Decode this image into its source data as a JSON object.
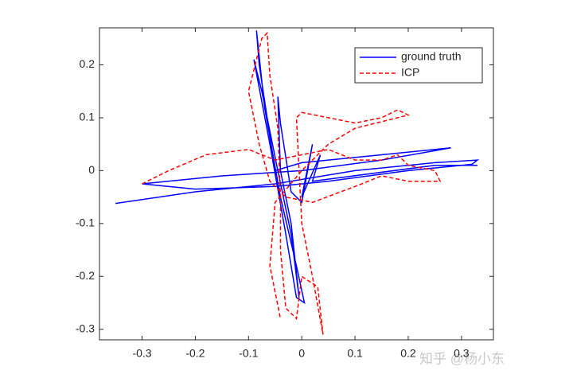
{
  "chart_data": {
    "type": "line",
    "xlim": [
      -0.38,
      0.36
    ],
    "ylim": [
      -0.32,
      0.27
    ],
    "xticks": [
      -0.3,
      -0.2,
      -0.1,
      0,
      0.1,
      0.2,
      0.3
    ],
    "yticks": [
      -0.3,
      -0.2,
      -0.1,
      0,
      0.1,
      0.2
    ],
    "legend": "northeast",
    "series": [
      {
        "name": "ground truth",
        "color": "#0000ff",
        "dash": "solid",
        "x": [
          -0.35,
          -0.2,
          -0.05,
          0.1,
          0.25,
          0.33,
          0.32,
          0.2,
          0.05,
          -0.05,
          -0.2,
          -0.3,
          -0.15,
          0.0,
          0.15,
          0.28,
          0.15,
          0.0,
          -0.05,
          -0.08,
          -0.085,
          -0.07,
          -0.04,
          -0.01,
          0.005,
          -0.01,
          -0.03,
          -0.06,
          -0.09,
          -0.075,
          -0.045,
          -0.02,
          -0.005,
          -0.02,
          -0.04,
          -0.045,
          -0.04,
          -0.02,
          0.0,
          0.02,
          0.0,
          0.035,
          0.02,
          0.25,
          0.33
        ],
        "values": [
          -0.062,
          -0.04,
          -0.025,
          0.0,
          0.015,
          0.02,
          0.012,
          0.0,
          -0.02,
          -0.03,
          -0.035,
          -0.025,
          -0.01,
          0.0,
          0.02,
          0.043,
          0.03,
          0.015,
          0.0,
          0.2,
          0.265,
          0.12,
          -0.05,
          -0.18,
          -0.25,
          -0.24,
          -0.12,
          0.05,
          0.21,
          0.15,
          0.0,
          -0.12,
          -0.24,
          -0.1,
          0.0,
          0.14,
          0.09,
          -0.04,
          -0.06,
          0.05,
          -0.05,
          0.03,
          -0.02,
          0.01,
          0.01
        ]
      },
      {
        "name": "ICP",
        "color": "#ff0000",
        "dash": "dashed",
        "x": [
          -0.3,
          -0.25,
          -0.18,
          -0.1,
          -0.05,
          0.0,
          0.05,
          0.1,
          0.15,
          0.18,
          0.2,
          0.25,
          0.26,
          0.2,
          0.15,
          0.1,
          0.02,
          -0.03,
          -0.06,
          -0.08,
          -0.1,
          -0.075,
          -0.065,
          -0.06,
          -0.045,
          -0.04,
          -0.04,
          -0.03,
          -0.01,
          0.0,
          0.03,
          0.04,
          0.02,
          0.0,
          -0.005,
          -0.01,
          0.0,
          0.05,
          0.1,
          0.15,
          0.18,
          0.2,
          0.18,
          0.1,
          0.05,
          0.0,
          -0.05,
          -0.06,
          -0.04
        ],
        "values": [
          -0.025,
          0.0,
          0.03,
          0.04,
          0.02,
          0.03,
          0.04,
          0.02,
          0.02,
          0.03,
          0.01,
          0.0,
          -0.02,
          -0.02,
          -0.01,
          -0.03,
          -0.06,
          -0.05,
          -0.02,
          0.05,
          0.15,
          0.25,
          0.26,
          0.18,
          0.08,
          -0.05,
          -0.15,
          -0.26,
          -0.28,
          -0.2,
          -0.22,
          -0.31,
          -0.2,
          -0.1,
          0.0,
          0.1,
          0.11,
          0.1,
          0.09,
          0.1,
          0.115,
          0.105,
          0.1,
          0.08,
          0.05,
          0.0,
          -0.06,
          -0.18,
          -0.28
        ]
      }
    ]
  },
  "watermark": "知乎 @杨小东"
}
